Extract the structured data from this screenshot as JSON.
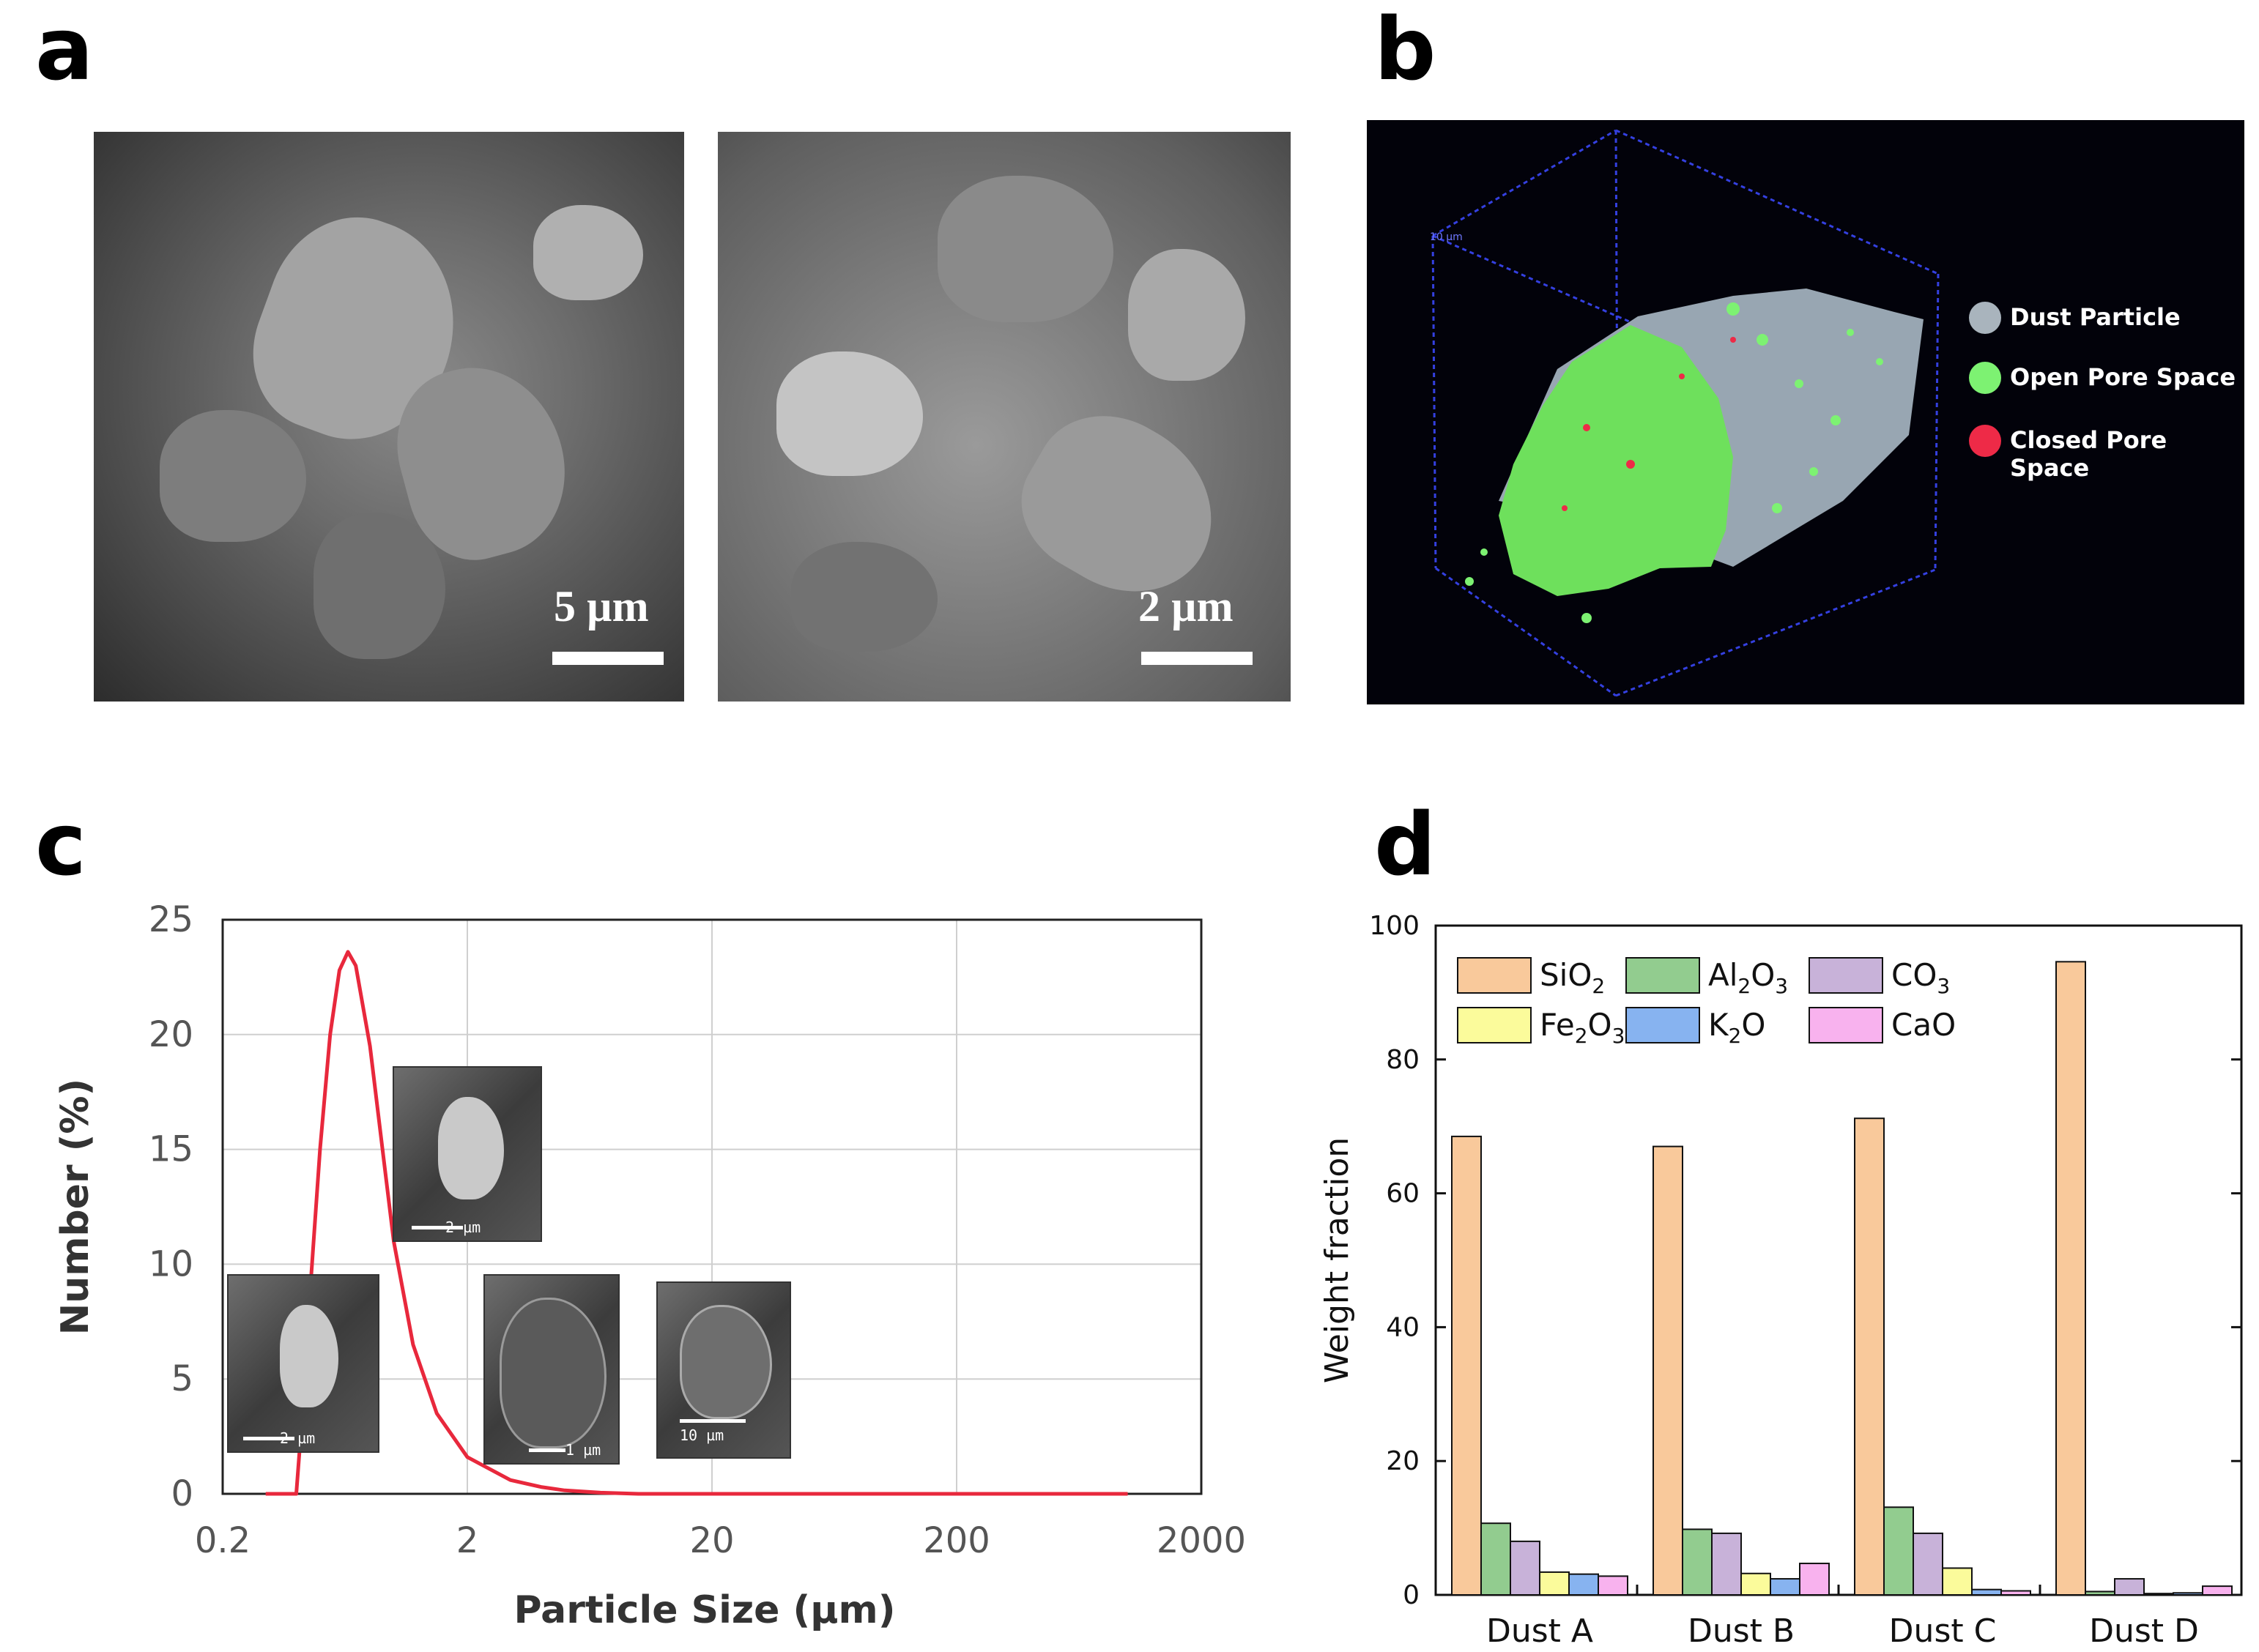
{
  "panel_labels": {
    "a": "a",
    "b": "b",
    "c": "c",
    "d": "d"
  },
  "panel_a": {
    "left_scale": "5 µm",
    "right_scale": "2 µm"
  },
  "panel_b": {
    "scale_tag": "10 µm",
    "legend": [
      {
        "label": "Dust Particle",
        "color": "#a9b4bd"
      },
      {
        "label": "Open Pore Space",
        "color": "#7df272"
      },
      {
        "label": "Closed Pore Space",
        "color": "#ee2a47"
      }
    ]
  },
  "panel_c": {
    "inset_labels": [
      "2 µm",
      "2 µm",
      "1 µm",
      "10 µm"
    ]
  },
  "chart_data": [
    {
      "type": "line",
      "panel": "c",
      "xlabel": "Particle Size (µm)",
      "ylabel": "Number (%)",
      "x_scale": "log",
      "xlim": [
        0.2,
        2000
      ],
      "ylim": [
        0,
        25
      ],
      "x_ticks": [
        "0.2",
        "2",
        "20",
        "200",
        "2000"
      ],
      "y_ticks": [
        "0",
        "5",
        "10",
        "15",
        "20",
        "25"
      ],
      "grid": true,
      "series": [
        {
          "color": "#e8283c",
          "x": [
            0.3,
            0.38,
            0.4,
            0.42,
            0.45,
            0.5,
            0.55,
            0.6,
            0.65,
            0.7,
            0.8,
            0.9,
            1.0,
            1.2,
            1.5,
            2.0,
            3.0,
            4.0,
            5.0,
            7.0,
            10.0,
            20,
            100,
            1000
          ],
          "y": [
            0,
            0,
            0,
            3.0,
            8.0,
            15.0,
            20.0,
            22.8,
            23.6,
            23.0,
            19.5,
            15.0,
            11.0,
            6.5,
            3.5,
            1.6,
            0.6,
            0.3,
            0.15,
            0.05,
            0,
            0,
            0,
            0
          ]
        }
      ]
    },
    {
      "type": "bar",
      "panel": "d",
      "ylabel": "Weight fraction",
      "ylim": [
        0,
        100
      ],
      "y_ticks": [
        "0",
        "20",
        "40",
        "60",
        "80",
        "100"
      ],
      "categories": [
        "Dust A",
        "Dust B",
        "Dust C",
        "Dust D"
      ],
      "legend_placement": "top-left",
      "series": [
        {
          "name": "SiO2",
          "name_base": "SiO",
          "name_sub": "2",
          "name_tail": "",
          "name_sub2": "",
          "color": "#f9c99b",
          "values": [
            68.5,
            67,
            71.2,
            94.6
          ]
        },
        {
          "name": "Al2O3",
          "name_base": "Al",
          "name_sub": "2",
          "name_tail": "O",
          "name_sub2": "3",
          "color": "#92cc8f",
          "values": [
            10.7,
            9.8,
            13.1,
            0.5
          ]
        },
        {
          "name": "CO3",
          "name_base": "CO",
          "name_sub": "3",
          "name_tail": "",
          "name_sub2": "",
          "color": "#c8b2d9",
          "values": [
            8.0,
            9.2,
            9.2,
            2.4
          ]
        },
        {
          "name": "Fe2O3",
          "name_base": "Fe",
          "name_sub": "2",
          "name_tail": "O",
          "name_sub2": "3",
          "color": "#fbfb9b",
          "values": [
            3.4,
            3.2,
            4.0,
            0.2
          ]
        },
        {
          "name": "K2O",
          "name_base": "K",
          "name_sub": "2",
          "name_tail": "O",
          "name_sub2": "",
          "color": "#87b3f0",
          "values": [
            3.1,
            2.4,
            0.8,
            0.3
          ]
        },
        {
          "name": "CaO",
          "name_base": "CaO",
          "name_sub": "",
          "name_tail": "",
          "name_sub2": "",
          "color": "#f8b2ee",
          "values": [
            2.8,
            4.7,
            0.6,
            1.3
          ]
        }
      ]
    }
  ]
}
